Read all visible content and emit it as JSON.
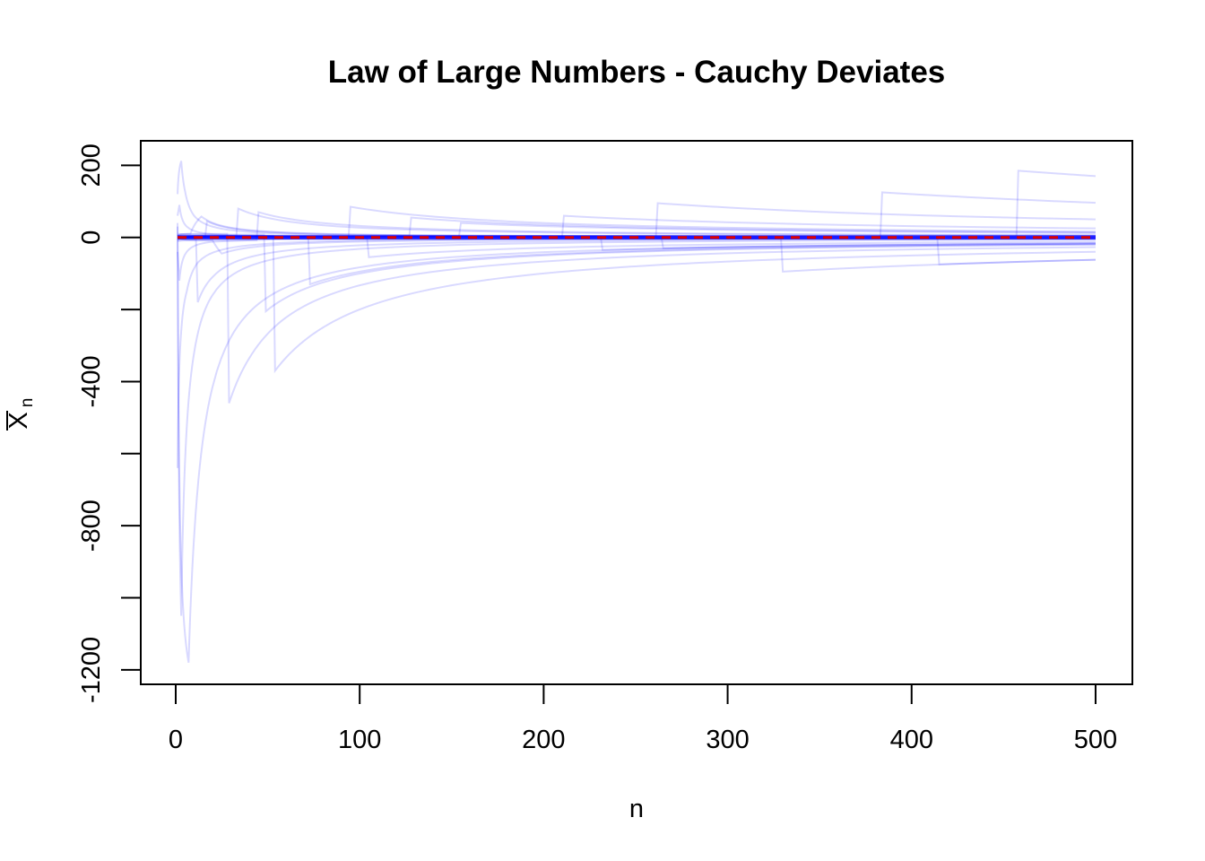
{
  "chart_data": {
    "type": "line",
    "title": "Law of Large Numbers - Cauchy Deviates",
    "xlabel": "n",
    "ylabel": "X",
    "ylabel_subscript": "n",
    "xlim": [
      -19,
      520
    ],
    "ylim": [
      -1240,
      268
    ],
    "x_ticks": [
      0,
      100,
      200,
      300,
      400,
      500
    ],
    "x_tick_labels": [
      "0",
      "100",
      "200",
      "300",
      "400",
      "500"
    ],
    "y_ticks": [
      -1200,
      -1000,
      -800,
      -600,
      -400,
      -200,
      0,
      200
    ],
    "y_tick_labels": [
      "-1200",
      "",
      "-800",
      "",
      "-400",
      "",
      "0",
      "200"
    ],
    "n_max": 500,
    "reference_line": {
      "y": 0,
      "style": "dashed",
      "color": "#dd0000"
    },
    "colors": {
      "series": "#0000ff",
      "series_opacity": 0.15,
      "reference": "#dd0000",
      "axis": "#000000"
    },
    "series": [
      {
        "values": [
          [
            1,
            -640
          ],
          [
            3,
            -260
          ],
          [
            6,
            -150
          ],
          [
            12,
            -70
          ],
          [
            40,
            -22
          ],
          [
            150,
            -6
          ],
          [
            500,
            -2
          ]
        ]
      },
      {
        "values": [
          [
            1,
            30
          ],
          [
            3,
            -1050
          ],
          [
            5,
            -630
          ],
          [
            10,
            -320
          ],
          [
            20,
            -160
          ],
          [
            50,
            -64
          ],
          [
            100,
            -32
          ],
          [
            200,
            -16
          ],
          [
            500,
            -6
          ]
        ]
      },
      {
        "values": [
          [
            1,
            40
          ],
          [
            7,
            -1180
          ],
          [
            10,
            -830
          ],
          [
            20,
            -415
          ],
          [
            50,
            -166
          ],
          [
            100,
            -83
          ],
          [
            200,
            -41
          ],
          [
            500,
            -17
          ]
        ]
      },
      {
        "values": [
          [
            1,
            120
          ],
          [
            3,
            212
          ],
          [
            5,
            130
          ],
          [
            10,
            60
          ],
          [
            20,
            30
          ],
          [
            50,
            12
          ],
          [
            100,
            6
          ],
          [
            500,
            1
          ]
        ]
      },
      {
        "values": [
          [
            1,
            5
          ],
          [
            28,
            10
          ],
          [
            29,
            -460
          ],
          [
            40,
            -335
          ],
          [
            60,
            -222
          ],
          [
            100,
            -133
          ],
          [
            200,
            -67
          ],
          [
            300,
            -44
          ],
          [
            500,
            -27
          ]
        ]
      },
      {
        "values": [
          [
            1,
            -5
          ],
          [
            53,
            5
          ],
          [
            54,
            -370
          ],
          [
            70,
            -286
          ],
          [
            100,
            -200
          ],
          [
            150,
            -133
          ],
          [
            200,
            -100
          ],
          [
            300,
            -67
          ],
          [
            500,
            -40
          ]
        ]
      },
      {
        "values": [
          [
            1,
            10
          ],
          [
            48,
            8
          ],
          [
            49,
            -205
          ],
          [
            80,
            -125
          ],
          [
            150,
            -67
          ],
          [
            300,
            -33
          ],
          [
            500,
            -20
          ]
        ]
      },
      {
        "values": [
          [
            1,
            0
          ],
          [
            72,
            2
          ],
          [
            73,
            -130
          ],
          [
            100,
            -95
          ],
          [
            200,
            -47
          ],
          [
            500,
            -19
          ]
        ]
      },
      {
        "values": [
          [
            1,
            0
          ],
          [
            261,
            2
          ],
          [
            262,
            95
          ],
          [
            300,
            83
          ],
          [
            400,
            62
          ],
          [
            500,
            50
          ]
        ]
      },
      {
        "values": [
          [
            1,
            0
          ],
          [
            457,
            2
          ],
          [
            458,
            185
          ],
          [
            480,
            177
          ],
          [
            500,
            170
          ]
        ]
      },
      {
        "values": [
          [
            1,
            0
          ],
          [
            383,
            2
          ],
          [
            384,
            125
          ],
          [
            450,
            107
          ],
          [
            500,
            96
          ]
        ]
      },
      {
        "values": [
          [
            1,
            5
          ],
          [
            94,
            3
          ],
          [
            95,
            85
          ],
          [
            150,
            54
          ],
          [
            200,
            40
          ],
          [
            300,
            27
          ],
          [
            500,
            16
          ]
        ]
      },
      {
        "values": [
          [
            1,
            5
          ],
          [
            33,
            5
          ],
          [
            34,
            80
          ],
          [
            60,
            45
          ],
          [
            100,
            27
          ],
          [
            200,
            14
          ],
          [
            500,
            5
          ]
        ]
      },
      {
        "values": [
          [
            1,
            -10
          ],
          [
            44,
            -8
          ],
          [
            45,
            70
          ],
          [
            100,
            32
          ],
          [
            200,
            16
          ],
          [
            500,
            6
          ]
        ]
      },
      {
        "values": [
          [
            1,
            0
          ],
          [
            329,
            -2
          ],
          [
            330,
            -95
          ],
          [
            400,
            -78
          ],
          [
            500,
            -62
          ]
        ]
      },
      {
        "values": [
          [
            1,
            0
          ],
          [
            127,
            5
          ],
          [
            128,
            55
          ],
          [
            200,
            35
          ],
          [
            300,
            23
          ],
          [
            500,
            14
          ]
        ]
      },
      {
        "values": [
          [
            1,
            -8
          ],
          [
            11,
            -5
          ],
          [
            12,
            -180
          ],
          [
            20,
            -110
          ],
          [
            50,
            -44
          ],
          [
            100,
            -22
          ],
          [
            500,
            -4
          ]
        ]
      },
      {
        "values": [
          [
            1,
            0
          ],
          [
            210,
            1
          ],
          [
            211,
            60
          ],
          [
            300,
            42
          ],
          [
            500,
            25
          ]
        ]
      },
      {
        "values": [
          [
            1,
            4
          ],
          [
            8,
            10
          ],
          [
            14,
            58
          ],
          [
            30,
            27
          ],
          [
            100,
            8
          ],
          [
            500,
            2
          ]
        ]
      },
      {
        "values": [
          [
            1,
            0
          ],
          [
            104,
            -2
          ],
          [
            105,
            -55
          ],
          [
            200,
            -29
          ],
          [
            500,
            -12
          ]
        ]
      },
      {
        "values": [
          [
            1,
            0
          ],
          [
            414,
            -3
          ],
          [
            415,
            -75
          ],
          [
            500,
            -62
          ]
        ]
      },
      {
        "values": [
          [
            1,
            0
          ],
          [
            231,
            2
          ],
          [
            232,
            -35
          ],
          [
            400,
            -20
          ],
          [
            500,
            -16
          ]
        ]
      },
      {
        "values": [
          [
            1,
            3
          ],
          [
            20,
            -8
          ],
          [
            25,
            -45
          ],
          [
            60,
            -19
          ],
          [
            150,
            -8
          ],
          [
            500,
            -2
          ]
        ]
      },
      {
        "values": [
          [
            1,
            0
          ],
          [
            154,
            3
          ],
          [
            155,
            40
          ],
          [
            300,
            21
          ],
          [
            500,
            12
          ]
        ]
      },
      {
        "values": [
          [
            1,
            60
          ],
          [
            2,
            90
          ],
          [
            6,
            30
          ],
          [
            30,
            6
          ],
          [
            500,
            0
          ]
        ]
      },
      {
        "values": [
          [
            1,
            -40
          ],
          [
            2,
            -120
          ],
          [
            5,
            -48
          ],
          [
            20,
            -12
          ],
          [
            500,
            -1
          ]
        ]
      },
      {
        "values": [
          [
            1,
            0
          ],
          [
            264,
            1
          ],
          [
            265,
            -30
          ],
          [
            500,
            -17
          ]
        ]
      },
      {
        "values": [
          [
            1,
            0
          ],
          [
            16,
            2
          ],
          [
            17,
            45
          ],
          [
            50,
            15
          ],
          [
            200,
            4
          ],
          [
            500,
            2
          ]
        ]
      }
    ],
    "grid": false,
    "legend": "none"
  }
}
